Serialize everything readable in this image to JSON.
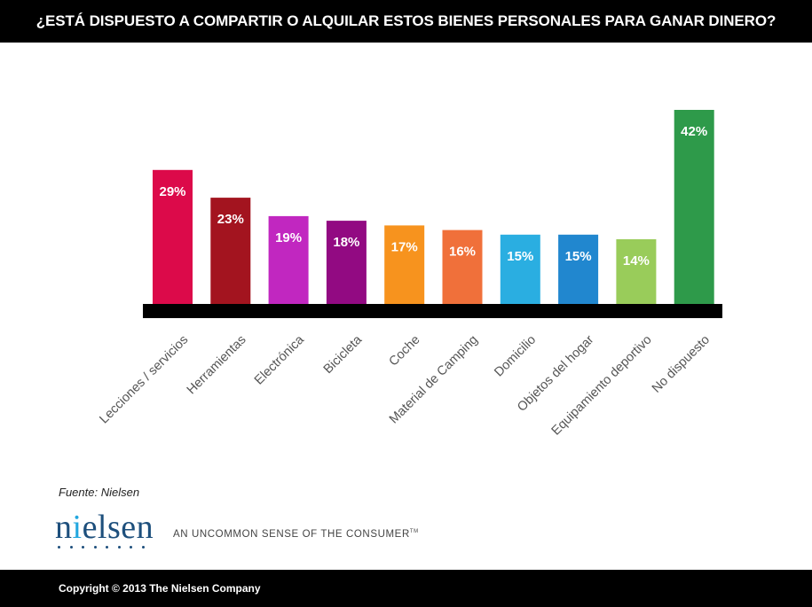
{
  "title": "¿ESTÁ DISPUESTO A COMPARTIR O ALQUILAR ESTOS BIENES PERSONALES PARA GANAR DINERO?",
  "chart_data": {
    "type": "bar",
    "categories": [
      "Lecciones / servicios",
      "Herramientas",
      "Electrónica",
      "Bicicleta",
      "Coche",
      "Material de Camping",
      "Domicilio",
      "Objetos del hogar",
      "Equipamiento deportivo",
      "No dispuesto"
    ],
    "values": [
      29,
      23,
      19,
      18,
      17,
      16,
      15,
      15,
      14,
      42
    ],
    "value_labels": [
      "29%",
      "23%",
      "19%",
      "18%",
      "17%",
      "16%",
      "15%",
      "15%",
      "14%",
      "42%"
    ],
    "colors": [
      "#dc0a4a",
      "#a3141f",
      "#c127c0",
      "#920a82",
      "#f7931e",
      "#f0703a",
      "#2aaee1",
      "#2187cf",
      "#99cc5a",
      "#2e9a4a"
    ],
    "unit": "%",
    "ylim": [
      0,
      42
    ],
    "grid": false,
    "legend": "none",
    "xlabel": "",
    "ylabel": ""
  },
  "source": "Fuente: Nielsen",
  "logo": {
    "text": "nielsen",
    "tagline": "AN UNCOMMON SENSE OF THE CONSUMER",
    "trademark": "TM"
  },
  "footer": {
    "copyright": "Copyright © 2013 The Nielsen Company"
  }
}
